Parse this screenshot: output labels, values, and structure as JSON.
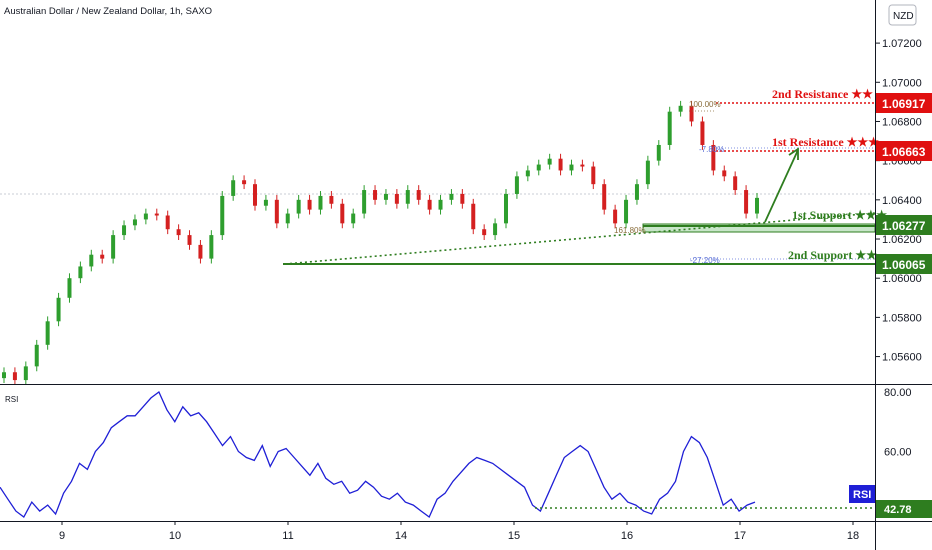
{
  "header": {
    "title": "Australian Dollar / New Zealand Dollar, 1h, SAXO",
    "currency_badge": "NZD"
  },
  "colors": {
    "resistance": "#e01010",
    "support": "#2e7d1f",
    "support_zone": "#a5d6a7",
    "candle_up": "#2e9e2e",
    "candle_down": "#d42020",
    "rsi_line": "#1f1fd6",
    "fib": "#8a6d3b",
    "rsi_badge": "#1f1fd6"
  },
  "chart_data": [
    {
      "type": "candlestick",
      "pair": "AUD/NZD",
      "timeframe": "1h",
      "source": "SAXO",
      "x_tick_labels": [
        "9",
        "10",
        "11",
        "14",
        "15",
        "16",
        "17",
        "18"
      ],
      "y_tick_labels": [
        "1.07200",
        "1.07000",
        "1.06800",
        "1.06600",
        "1.06400",
        "1.06200",
        "1.06000",
        "1.05800",
        "1.05600"
      ],
      "ylim": [
        1.0546,
        1.0742
      ],
      "levels": [
        {
          "label": "2nd Resistance",
          "stars": "★★",
          "value": 1.06917,
          "value_text": "1.06917",
          "kind": "resistance"
        },
        {
          "label": "1st Resistance",
          "stars": "★★★",
          "value": 1.06663,
          "value_text": "1.06663",
          "kind": "resistance"
        },
        {
          "label": "1st Support",
          "stars": "★★★",
          "value": 1.06277,
          "value_text": "1.06277",
          "kind": "support"
        },
        {
          "label": "2nd Support",
          "stars": "★★",
          "value": 1.06065,
          "value_text": "1.06065",
          "kind": "support"
        }
      ],
      "fib_labels": [
        "100.00%",
        "-7.80%",
        "161.80%",
        "-27.20%"
      ],
      "close_series": [
        1.0552,
        1.0548,
        1.0555,
        1.0566,
        1.0578,
        1.059,
        1.06,
        1.0606,
        1.0612,
        1.061,
        1.0622,
        1.0627,
        1.063,
        1.0633,
        1.0632,
        1.0625,
        1.0622,
        1.0617,
        1.061,
        1.0622,
        1.0642,
        1.065,
        1.0648,
        1.0637,
        1.064,
        1.0628,
        1.0633,
        1.064,
        1.0635,
        1.0642,
        1.0638,
        1.0628,
        1.0633,
        1.0645,
        1.064,
        1.0643,
        1.0638,
        1.0645,
        1.064,
        1.0635,
        1.064,
        1.0643,
        1.0638,
        1.0625,
        1.0622,
        1.0628,
        1.0643,
        1.0652,
        1.0655,
        1.0658,
        1.0661,
        1.0655,
        1.0658,
        1.0657,
        1.0648,
        1.0635,
        1.0628,
        1.064,
        1.0648,
        1.066,
        1.0668,
        1.0685,
        1.0688,
        1.068,
        1.0668,
        1.0655,
        1.0652,
        1.0645,
        1.0633,
        1.0641
      ]
    },
    {
      "type": "line",
      "name": "RSI",
      "label": "RSI",
      "current_value": "42.78",
      "y_tick_labels": [
        "80.00",
        "60.00"
      ],
      "ylim": [
        37,
        82
      ],
      "values": [
        48,
        44,
        40,
        38,
        43,
        40,
        42,
        39,
        46,
        50,
        56,
        54,
        60,
        63,
        68,
        70,
        72,
        72,
        75,
        78,
        80,
        74,
        70,
        75,
        72,
        73,
        70,
        66,
        62,
        65,
        60,
        58,
        57,
        62,
        55,
        60,
        61,
        58,
        55,
        52,
        56,
        51,
        49,
        50,
        46,
        47,
        50,
        48,
        45,
        44,
        46,
        43,
        42,
        40,
        38,
        44,
        46,
        50,
        53,
        56,
        58,
        57,
        56,
        54,
        52,
        50,
        48,
        42,
        40,
        46,
        52,
        58,
        60,
        62,
        60,
        54,
        48,
        44,
        46,
        43,
        42,
        40,
        39,
        44,
        46,
        50,
        60,
        65,
        63,
        58,
        50,
        42,
        44,
        40,
        42,
        43
      ]
    }
  ]
}
